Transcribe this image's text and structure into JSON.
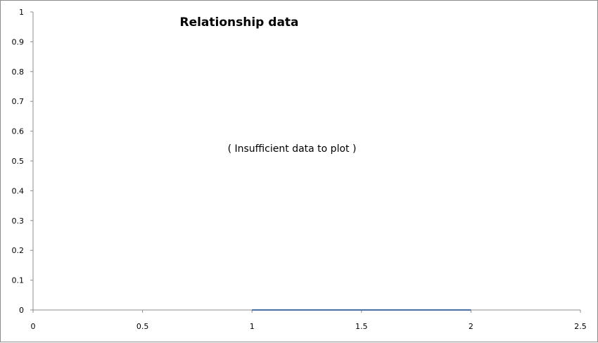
{
  "chart_data": {
    "type": "line",
    "title": "Relationship data",
    "annotation": "( Insufficient data to plot )",
    "xlabel": "",
    "ylabel": "",
    "xlim": [
      0,
      2.5
    ],
    "ylim": [
      0,
      1
    ],
    "x_ticks": [
      "0",
      "0.5",
      "1",
      "1.5",
      "2",
      "2.5"
    ],
    "y_ticks": [
      "0",
      "0.1",
      "0.2",
      "0.3",
      "0.4",
      "0.5",
      "0.6",
      "0.7",
      "0.8",
      "0.9",
      "1"
    ],
    "grid": false,
    "legend": "none",
    "series": [
      {
        "x": [
          1,
          2
        ],
        "y": [
          0,
          0
        ],
        "color": "#4a6fa5"
      }
    ]
  }
}
